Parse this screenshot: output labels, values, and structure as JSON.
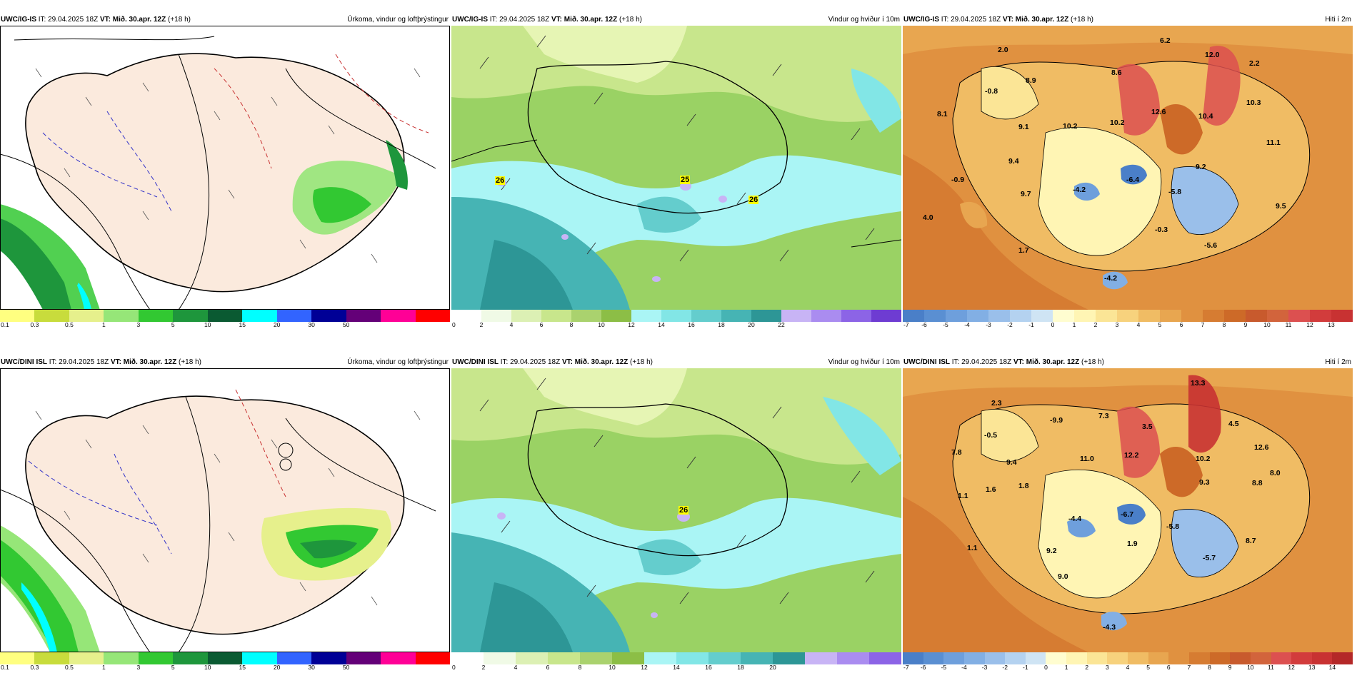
{
  "panels": {
    "p1": {
      "model": "UWC/IG-IS",
      "it_label": "IT: 29.04.2025 18Z",
      "vt_label": "VT: Mið. 30.apr. 12Z",
      "offset": "(+18 h)",
      "title": "Úrkoma, vindur og loftþrýstingur",
      "colorbar_labels": [
        "0.1",
        "0.3",
        "0.5",
        "1",
        "3",
        "5",
        "10",
        "15",
        "20",
        "30",
        "50"
      ],
      "colorbar_colors": [
        "#ffff80",
        "#c8dc3c",
        "#e6f08c",
        "#96e678",
        "#32c832",
        "#1e963c",
        "#0a5a32",
        "#00ffff",
        "#3264ff",
        "#000096",
        "#640078",
        "#ff0096",
        "#ff0000"
      ]
    },
    "p2": {
      "model": "UWC/IG-IS",
      "it_label": "IT: 29.04.2025 18Z",
      "vt_label": "VT: Mið. 30.apr. 12Z",
      "offset": "(+18 h)",
      "title": "Vindur og hviður í 10m",
      "map_labels": [
        "26",
        "25",
        "26"
      ],
      "colorbar_labels": [
        "0",
        "2",
        "4",
        "6",
        "8",
        "10",
        "12",
        "14",
        "16",
        "18",
        "20",
        "22"
      ],
      "colorbar_colors": [
        "#ffffff",
        "#f0fae6",
        "#dcf0b4",
        "#c8e68c",
        "#aad26e",
        "#8cbe46",
        "#aaf5f5",
        "#82e6e6",
        "#64cdcd",
        "#46b4b4",
        "#2d9696",
        "#c8b4f5",
        "#aa8cf0",
        "#8c64e6",
        "#6e3cd2"
      ]
    },
    "p3": {
      "model": "UWC/IG-IS",
      "it_label": "IT: 29.04.2025 18Z",
      "vt_label": "VT: Mið. 30.apr. 12Z",
      "offset": "(+18 h)",
      "title": "Hiti í 2m",
      "temps": [
        "6.2",
        "2.0",
        "12.0",
        "2.2",
        "-0.8",
        "8.9",
        "8.6",
        "10.3",
        "8.1",
        "9.1",
        "10.2",
        "10.2",
        "12.6",
        "10.4",
        "11.1",
        "9.4",
        "-0.9",
        "9.2",
        "-4.2",
        "-6.4",
        "-5.8",
        "9.7",
        "9.5",
        "4.0",
        "-0.3",
        "-5.6",
        "1.7",
        "-4.2"
      ],
      "colorbar_labels": [
        "-7",
        "-6",
        "-5",
        "-4",
        "-3",
        "-2",
        "-1",
        "0",
        "1",
        "2",
        "3",
        "4",
        "5",
        "6",
        "7",
        "8",
        "9",
        "10",
        "11",
        "12",
        "13"
      ],
      "colorbar_colors": [
        "#4a7fc8",
        "#5a8fd2",
        "#6e9fdc",
        "#82afe4",
        "#9abfea",
        "#b4d2f0",
        "#cfe4f4",
        "#fffdd0",
        "#fff5b4",
        "#fbe596",
        "#f7d27d",
        "#f0bc64",
        "#e8a650",
        "#e09140",
        "#d67c32",
        "#cd6a28",
        "#c85a2d",
        "#d2643c",
        "#dc5050",
        "#d23c3c",
        "#c83232"
      ]
    },
    "p4": {
      "model": "UWC/DINI ISL",
      "it_label": "IT: 29.04.2025 18Z",
      "vt_label": "VT: Mið. 30.apr. 12Z",
      "offset": "(+18 h)",
      "title": "Úrkoma, vindur og loftþrýstingur",
      "colorbar_labels": [
        "0.1",
        "0.3",
        "0.5",
        "1",
        "3",
        "5",
        "10",
        "15",
        "20",
        "30",
        "50"
      ],
      "colorbar_colors": [
        "#ffff80",
        "#c8dc3c",
        "#e6f08c",
        "#96e678",
        "#32c832",
        "#1e963c",
        "#0a5a32",
        "#00ffff",
        "#3264ff",
        "#000096",
        "#640078",
        "#ff0096",
        "#ff0000"
      ]
    },
    "p5": {
      "model": "UWC/DINI ISL",
      "it_label": "IT: 29.04.2025 18Z",
      "vt_label": "VT: Mið. 30.apr. 12Z",
      "offset": "(+18 h)",
      "title": "Vindur og hviður í 10m",
      "map_labels": [
        "26"
      ],
      "colorbar_labels": [
        "0",
        "2",
        "4",
        "6",
        "8",
        "10",
        "12",
        "14",
        "16",
        "18",
        "20"
      ],
      "colorbar_colors": [
        "#ffffff",
        "#f0fae6",
        "#dcf0b4",
        "#c8e68c",
        "#aad26e",
        "#8cbe46",
        "#aaf5f5",
        "#82e6e6",
        "#64cdcd",
        "#46b4b4",
        "#2d9696",
        "#c8b4f5",
        "#aa8cf0",
        "#8c64e6"
      ]
    },
    "p6": {
      "model": "UWC/DINI ISL",
      "it_label": "IT: 29.04.2025 18Z",
      "vt_label": "VT: Mið. 30.apr. 12Z",
      "offset": "(+18 h)",
      "title": "Hiti í 2m",
      "temps": [
        "13.3",
        "2.3",
        "-9.9",
        "7.3",
        "3.5",
        "4.5",
        "-0.5",
        "12.6",
        "7.8",
        "9.4",
        "11.0",
        "12.2",
        "10.2",
        "8.0",
        "1.6",
        "1.8",
        "9.3",
        "8.8",
        "1.1",
        "-4.4",
        "-6.7",
        "-5.8",
        "8.7",
        "1.1",
        "1.9",
        "9.2",
        "-5.7",
        "9.0",
        "-4.3"
      ],
      "colorbar_labels": [
        "-7",
        "-6",
        "-5",
        "-4",
        "-3",
        "-2",
        "-1",
        "0",
        "1",
        "2",
        "3",
        "4",
        "5",
        "6",
        "7",
        "8",
        "9",
        "10",
        "11",
        "12",
        "13",
        "14"
      ],
      "colorbar_colors": [
        "#4a7fc8",
        "#5a8fd2",
        "#6e9fdc",
        "#82afe4",
        "#9abfea",
        "#b4d2f0",
        "#cfe4f4",
        "#fffdd0",
        "#fff5b4",
        "#fbe596",
        "#f7d27d",
        "#f0bc64",
        "#e8a650",
        "#e09140",
        "#d67c32",
        "#cd6a28",
        "#c85a2d",
        "#d2643c",
        "#dc5050",
        "#d23c3c",
        "#c83232",
        "#b42828"
      ]
    }
  }
}
